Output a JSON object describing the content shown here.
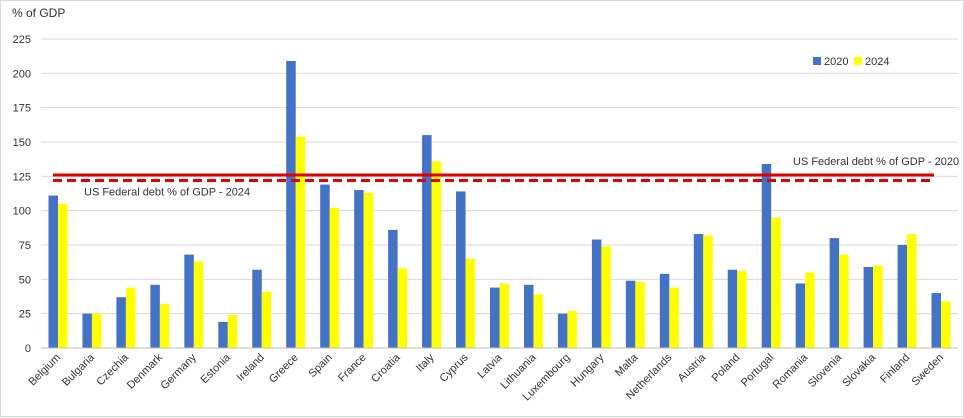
{
  "chart_data": {
    "type": "bar",
    "ylabel": "% of GDP",
    "ylim": [
      0,
      225
    ],
    "yticks": [
      0,
      25,
      50,
      75,
      100,
      125,
      150,
      175,
      200,
      225
    ],
    "grid": true,
    "legend_position": "top-right",
    "categories": [
      "Belgium",
      "Bulgaria",
      "Czechia",
      "Denmark",
      "Germany",
      "Estonia",
      "Ireland",
      "Greece",
      "Spain",
      "France",
      "Croatia",
      "Italy",
      "Cyprus",
      "Latvia",
      "Lithuania",
      "Luxembourg",
      "Hungary",
      "Malta",
      "Netherlands",
      "Austria",
      "Poland",
      "Portugal",
      "Romania",
      "Slovenia",
      "Slovakia",
      "Finland",
      "Sweden"
    ],
    "series": [
      {
        "name": "2020",
        "color": "#4472c4",
        "values": [
          111,
          25,
          37,
          46,
          68,
          19,
          57,
          209,
          119,
          115,
          86,
          155,
          114,
          44,
          46,
          25,
          79,
          49,
          54,
          83,
          57,
          134,
          47,
          80,
          59,
          75,
          40
        ]
      },
      {
        "name": "2024",
        "color": "#ffff00",
        "values": [
          105,
          25,
          44,
          32,
          63,
          24,
          41,
          154,
          102,
          113,
          58,
          136,
          65,
          47,
          39,
          27,
          74,
          48,
          44,
          82,
          56,
          95,
          55,
          68,
          60,
          83,
          34
        ]
      }
    ],
    "reference_lines": [
      {
        "label": "US Federal debt % of GDP - 2020",
        "value": 126,
        "style": "solid",
        "color": "#e00000"
      },
      {
        "label": "US Federal debt % of GDP - 2024",
        "value": 122,
        "style": "dashed",
        "color": "#e00000"
      }
    ]
  }
}
